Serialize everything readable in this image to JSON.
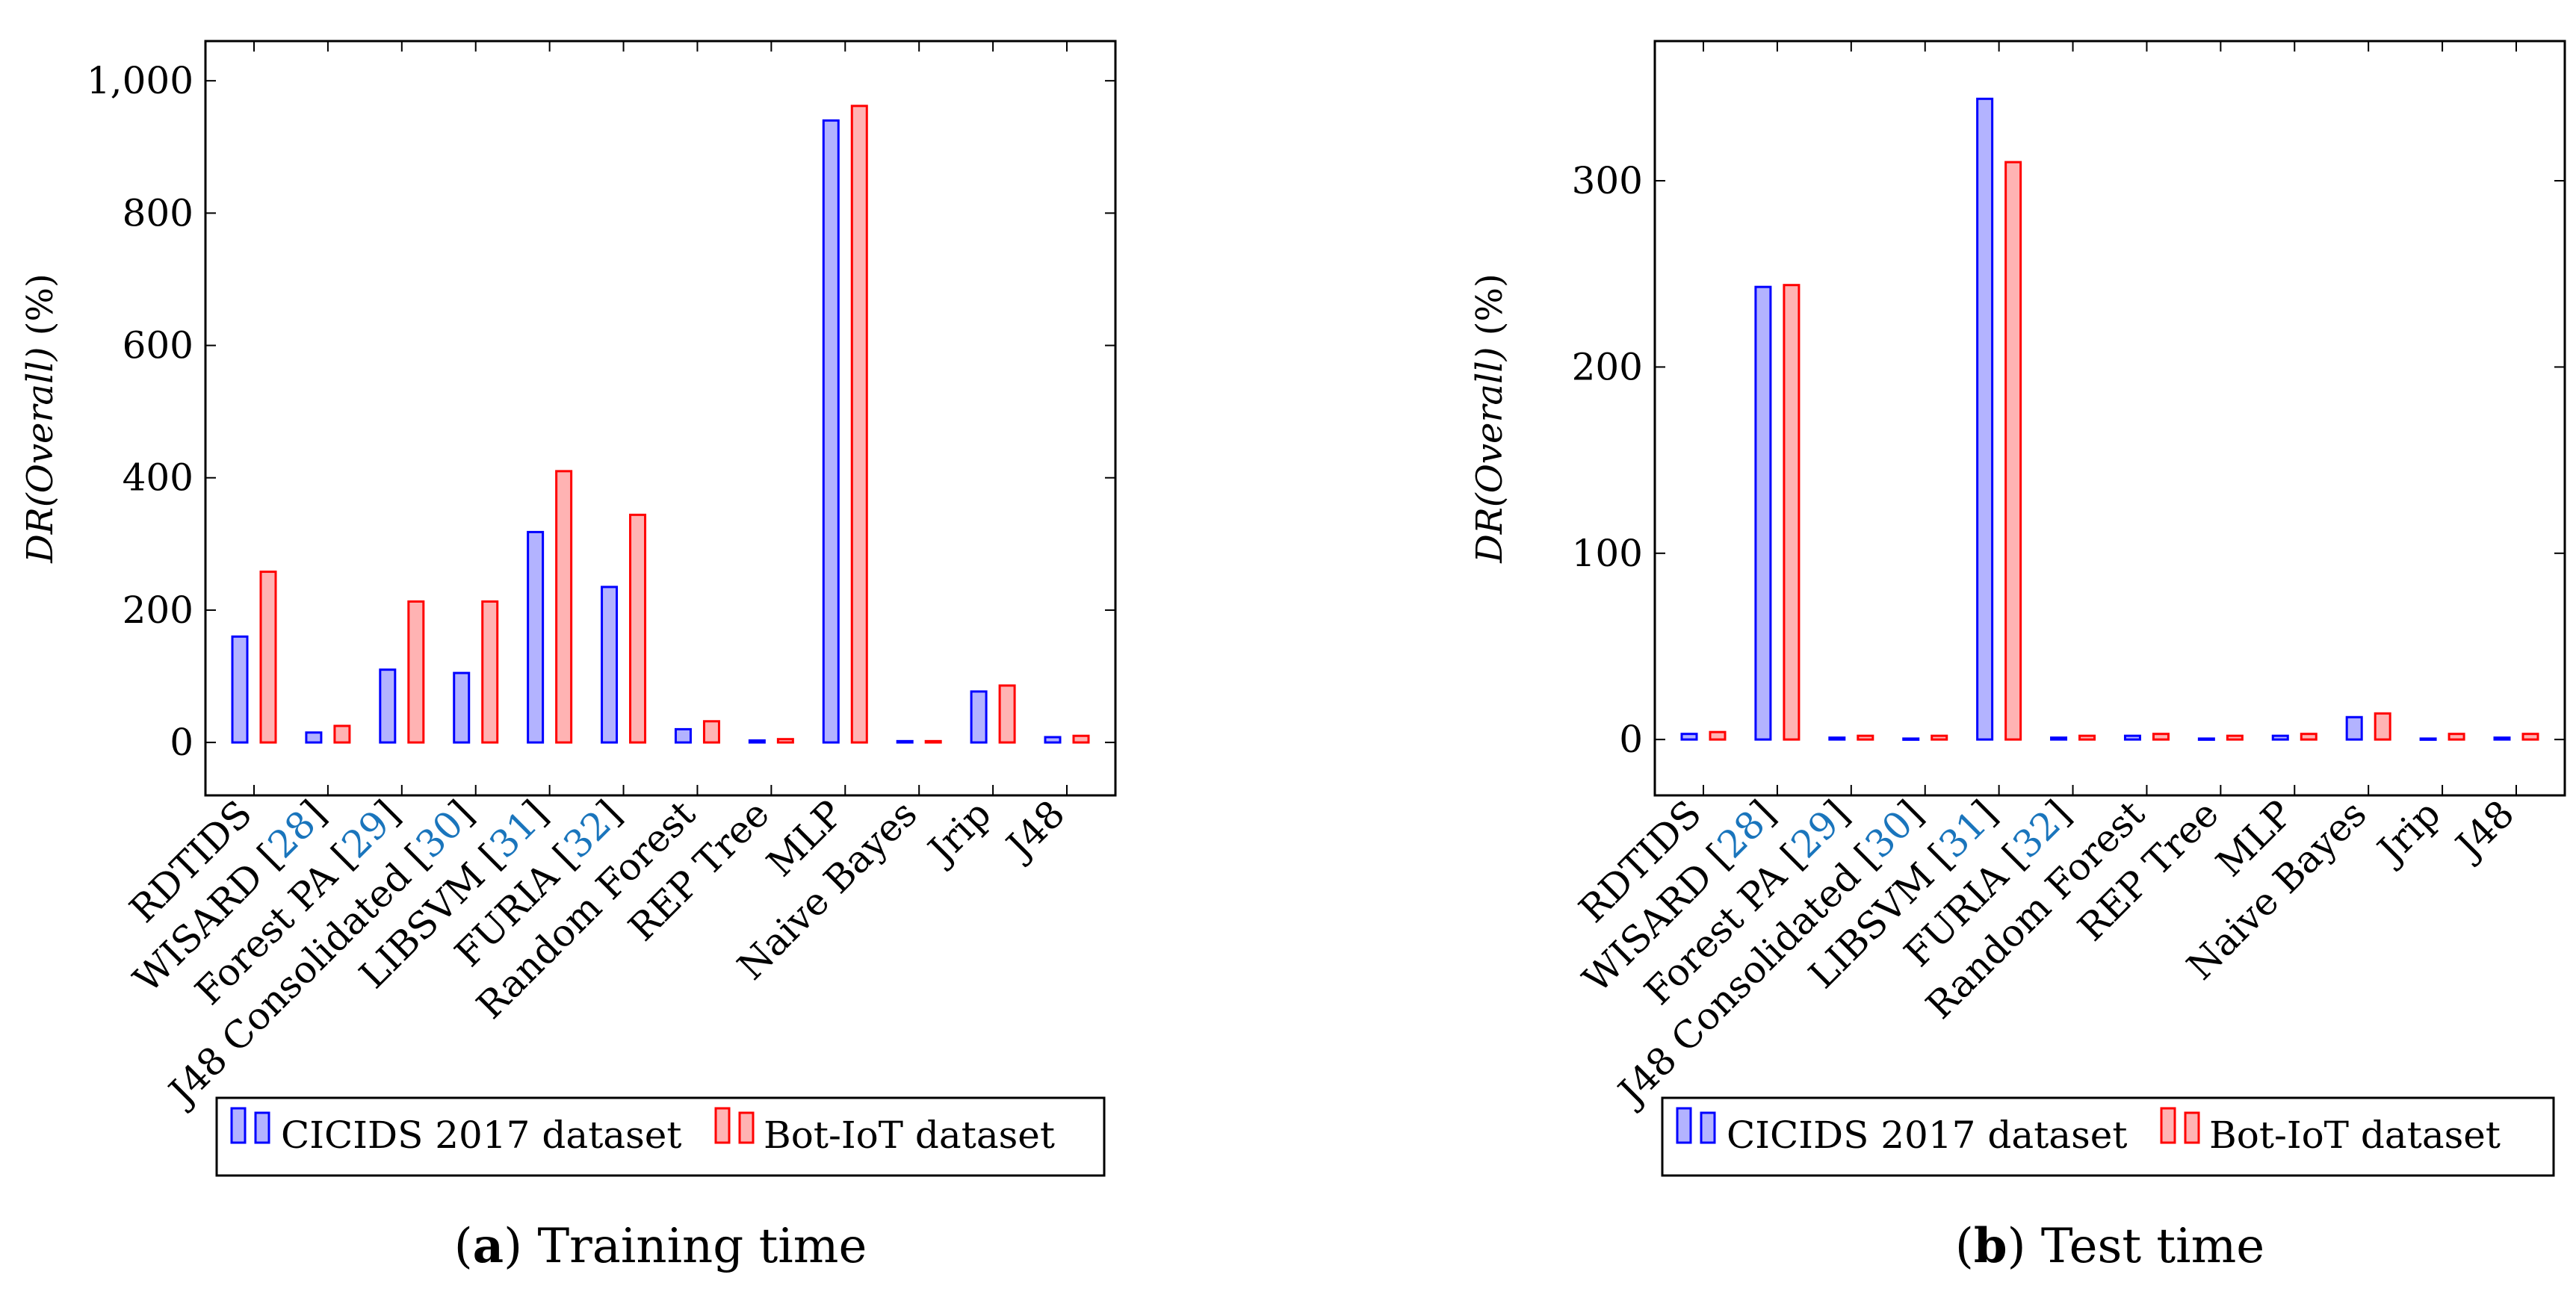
{
  "charts": [
    {
      "caption_letter": "a",
      "caption_text": "Training time",
      "chart_data": {
        "type": "bar",
        "title": "",
        "ylabel_main": "DR(Overall)",
        "ylabel_unit": "(%)",
        "categories": [
          "RDTIDS",
          "WISARD [28]",
          "Forest PA [29]",
          "J48 Consolidated [30]",
          "LIBSVM [31]",
          "FURIA [32]",
          "Random Forest",
          "REP Tree",
          "MLP",
          "Naive Bayes",
          "Jrip",
          "J48"
        ],
        "series": [
          {
            "name": "CICIDS 2017 dataset",
            "color": "#0000ff",
            "fill": "#b3b3ff",
            "values": [
              160,
              15,
              110,
              105,
              318,
              235,
              20,
              3,
              940,
              2,
              77,
              8
            ]
          },
          {
            "name": "Bot-IoT dataset",
            "color": "#ff0000",
            "fill": "#ffb3b3",
            "values": [
              258,
              25,
              213,
              213,
              410,
              344,
              32,
              5,
              962,
              2,
              86,
              10
            ]
          }
        ],
        "ylim": [
          -80,
          1060
        ],
        "yticks": [
          0,
          200,
          400,
          600,
          800,
          1000
        ],
        "ytick_labels": [
          "0",
          "200",
          "400",
          "600",
          "800",
          "1,000"
        ],
        "legend_position": "bottom"
      }
    },
    {
      "caption_letter": "b",
      "caption_text": "Test time",
      "chart_data": {
        "type": "bar",
        "title": "",
        "ylabel_main": "DR(Overall)",
        "ylabel_unit": "(%)",
        "categories": [
          "RDTIDS",
          "WISARD [28]",
          "Forest PA [29]",
          "J48 Consolidated [30]",
          "LIBSVM [31]",
          "FURIA [32]",
          "Random Forest",
          "REP Tree",
          "MLP",
          "Naive Bayes",
          "Jrip",
          "J48"
        ],
        "series": [
          {
            "name": "CICIDS 2017 dataset",
            "color": "#0000ff",
            "fill": "#b3b3ff",
            "values": [
              3,
              243,
              1,
              0.5,
              344,
              1,
              2,
              0.5,
              2,
              12,
              0.5,
              1
            ]
          },
          {
            "name": "Bot-IoT dataset",
            "color": "#ff0000",
            "fill": "#ffb3b3",
            "values": [
              4,
              244,
              2,
              2,
              310,
              2,
              3,
              2,
              3,
              14,
              3,
              3
            ]
          }
        ],
        "ylim": [
          -30,
          375
        ],
        "yticks": [
          0,
          100,
          200,
          300
        ],
        "ytick_labels": [
          "0",
          "100",
          "200",
          "300"
        ],
        "legend_position": "bottom"
      }
    }
  ]
}
